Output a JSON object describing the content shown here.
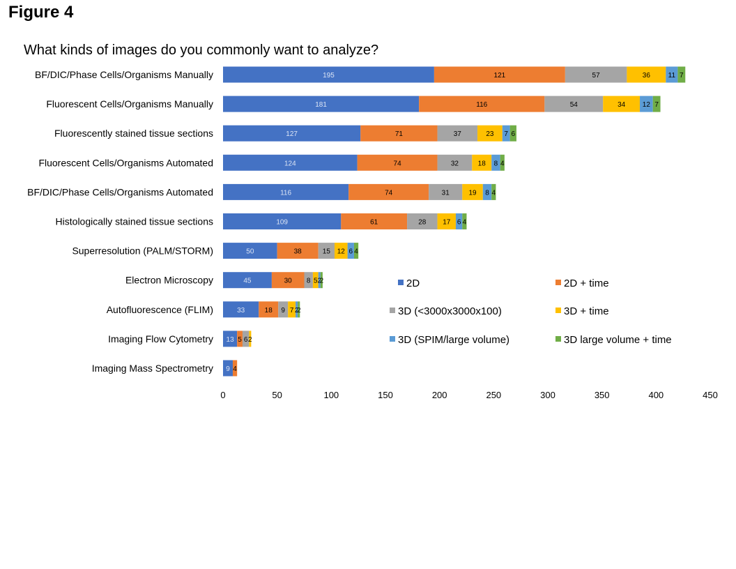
{
  "figure_label": "Figure 4",
  "chart_data": {
    "type": "bar",
    "orientation": "horizontal",
    "stacked": true,
    "title": "What kinds of images do you commonly want to analyze?",
    "xlabel": "",
    "ylabel": "",
    "xlim": [
      0,
      450
    ],
    "xticks": [
      0,
      50,
      100,
      150,
      200,
      250,
      300,
      350,
      400,
      450
    ],
    "grid": false,
    "legend_position": "right",
    "categories": [
      "BF/DIC/Phase Cells/Organisms Manually",
      "Fluorescent Cells/Organisms Manually",
      "Fluorescently stained tissue sections",
      "Fluorescent Cells/Organisms Automated",
      "BF/DIC/Phase Cells/Organisms Automated",
      "Histologically stained tissue sections",
      "Superresolution (PALM/STORM)",
      "Electron Microscopy",
      "Autofluorescence (FLIM)",
      "Imaging Flow Cytometry",
      "Imaging Mass Spectrometry"
    ],
    "series": [
      {
        "name": "2D",
        "color": "#4472c4",
        "label_color": "#dbe4f5",
        "values": [
          195,
          181,
          127,
          124,
          116,
          109,
          50,
          45,
          33,
          13,
          9
        ]
      },
      {
        "name": "2D + time",
        "color": "#ed7d31",
        "label_color": "#000000",
        "values": [
          121,
          116,
          71,
          74,
          74,
          61,
          38,
          30,
          18,
          5,
          4
        ]
      },
      {
        "name": "3D (<3000x3000x100)",
        "color": "#a5a5a5",
        "label_color": "#000000",
        "values": [
          57,
          54,
          37,
          32,
          31,
          28,
          15,
          8,
          9,
          6,
          0
        ]
      },
      {
        "name": "3D + time",
        "color": "#ffc000",
        "label_color": "#000000",
        "values": [
          36,
          34,
          23,
          18,
          19,
          17,
          12,
          5,
          7,
          2,
          0
        ]
      },
      {
        "name": "3D (SPIM/large volume)",
        "color": "#5b9bd5",
        "label_color": "#000000",
        "values": [
          11,
          12,
          7,
          8,
          8,
          6,
          6,
          2,
          2,
          0,
          0
        ]
      },
      {
        "name": "3D large volume + time",
        "color": "#70ad47",
        "label_color": "#000000",
        "values": [
          7,
          7,
          6,
          4,
          4,
          4,
          4,
          2,
          2,
          0,
          0
        ]
      }
    ]
  }
}
